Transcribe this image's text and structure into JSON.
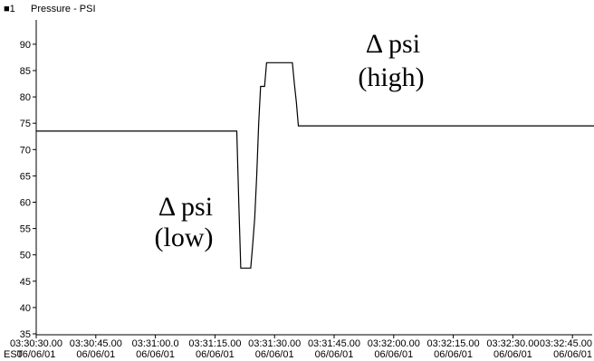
{
  "chart_data": {
    "type": "line",
    "legend": {
      "marker": "■1",
      "label": "Pressure - PSI"
    },
    "timezone_label": "EST",
    "y_ticks": [
      35,
      40,
      45,
      50,
      55,
      60,
      65,
      70,
      75,
      80,
      85,
      90
    ],
    "ylim": [
      35,
      95
    ],
    "x_ticks": [
      {
        "time": "03:30:30.00",
        "date": "06/06/01"
      },
      {
        "time": "03:30:45.00",
        "date": "06/06/01"
      },
      {
        "time": "03:31:00.0",
        "date": "06/06/01"
      },
      {
        "time": "03:31:15.00",
        "date": "06/06/01"
      },
      {
        "time": "03:31:30.00",
        "date": "06/06/01"
      },
      {
        "time": "03:31:45.00",
        "date": "06/06/01"
      },
      {
        "time": "03:32:00.00",
        "date": "06/06/01"
      },
      {
        "time": "03:32:15.00",
        "date": "06/06/01"
      },
      {
        "time": "03:32:30.00",
        "date": "06/06/01"
      },
      {
        "time": "03:32:45.00",
        "date": "06/06/01"
      }
    ],
    "series": [
      {
        "name": "Pressure - PSI",
        "color": "#000000",
        "points": [
          [
            "03:30:30.00",
            73.5
          ],
          [
            "03:31:20.50",
            73.5
          ],
          [
            "03:31:21.00",
            60
          ],
          [
            "03:31:21.50",
            47.5
          ],
          [
            "03:31:24.00",
            47.5
          ],
          [
            "03:31:24.50",
            52
          ],
          [
            "03:31:25.00",
            57
          ],
          [
            "03:31:25.50",
            65
          ],
          [
            "03:31:26.00",
            75
          ],
          [
            "03:31:26.50",
            82
          ],
          [
            "03:31:27.50",
            82
          ],
          [
            "03:31:28.00",
            86.5
          ],
          [
            "03:31:34.50",
            86.5
          ],
          [
            "03:31:35.00",
            82.5
          ],
          [
            "03:31:35.50",
            79
          ],
          [
            "03:31:36.00",
            74.5
          ],
          [
            "03:32:51.00",
            74.5
          ]
        ]
      }
    ],
    "annotations": [
      {
        "symbol": "Δ psi",
        "label": "(low)"
      },
      {
        "symbol": "Δ psi",
        "label": "(high)"
      }
    ]
  }
}
